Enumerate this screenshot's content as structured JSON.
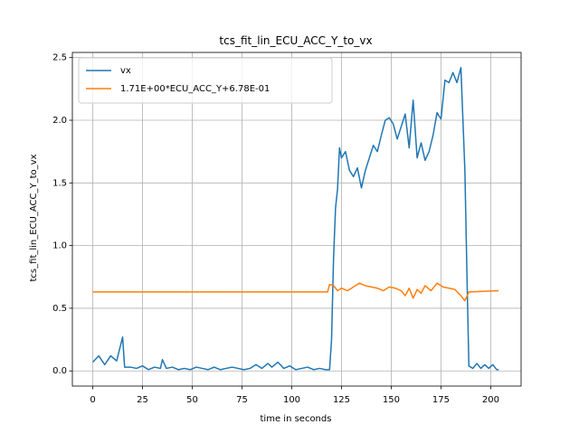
{
  "chart_data": {
    "type": "line",
    "title": "tcs_fit_lin_ECU_ACC_Y_to_vx",
    "xlabel": "time in seconds",
    "ylabel": "tcs_fit_lin_ECU_ACC_Y_to_vx",
    "xlim": [
      -10.25,
      215.25
    ],
    "ylim": [
      -0.121,
      2.541
    ],
    "xticks": [
      0,
      25,
      50,
      75,
      100,
      125,
      150,
      175,
      200
    ],
    "yticks": [
      {
        "value": 0,
        "label": "0.0"
      },
      {
        "value": 0.5,
        "label": "0.5"
      },
      {
        "value": 1,
        "label": "1.0"
      },
      {
        "value": 1.5,
        "label": "1.5"
      },
      {
        "value": 2,
        "label": "2.0"
      },
      {
        "value": 2.5,
        "label": "2.5"
      }
    ],
    "grid": true,
    "legend": "upper left",
    "series": [
      {
        "name": "vx",
        "color": "#1f77b4",
        "x": [
          0,
          3,
          6,
          9,
          12,
          15,
          16,
          19,
          22,
          25,
          28,
          31,
          34,
          35,
          37,
          40,
          43,
          46,
          49,
          52,
          55,
          58,
          61,
          64,
          67,
          70,
          73,
          76,
          79,
          82,
          85,
          88,
          90,
          93,
          96,
          99,
          102,
          105,
          108,
          111,
          114,
          117,
          119,
          120,
          121,
          122,
          123,
          124,
          125,
          127,
          129,
          131,
          133,
          135,
          137,
          139,
          141,
          143,
          145,
          147,
          149,
          151,
          153,
          155,
          157,
          159,
          161,
          163,
          165,
          167,
          169,
          171,
          173,
          175,
          177,
          179,
          181,
          183,
          185,
          187,
          188,
          189,
          191,
          193,
          195,
          197,
          199,
          201,
          203,
          204
        ],
        "values": [
          0.07,
          0.12,
          0.05,
          0.12,
          0.08,
          0.27,
          0.03,
          0.03,
          0.02,
          0.04,
          0.01,
          0.03,
          0.02,
          0.09,
          0.02,
          0.03,
          0.01,
          0.02,
          0.01,
          0.03,
          0.02,
          0.01,
          0.03,
          0.01,
          0.02,
          0.03,
          0.02,
          0.01,
          0.02,
          0.05,
          0.02,
          0.06,
          0.03,
          0.07,
          0.02,
          0.04,
          0.01,
          0.02,
          0.03,
          0.01,
          0.02,
          0.01,
          0.01,
          0.25,
          0.9,
          1.3,
          1.45,
          1.78,
          1.7,
          1.75,
          1.6,
          1.55,
          1.62,
          1.46,
          1.6,
          1.7,
          1.8,
          1.75,
          1.88,
          2.0,
          2.02,
          1.97,
          1.85,
          1.95,
          2.05,
          1.78,
          2.16,
          1.7,
          1.82,
          1.68,
          1.75,
          1.88,
          2.06,
          2.01,
          2.32,
          2.3,
          2.38,
          2.3,
          2.42,
          1.6,
          0.8,
          0.04,
          0.02,
          0.06,
          0.02,
          0.05,
          0.02,
          0.05,
          0.01,
          0.01
        ]
      },
      {
        "name": "1.71E+00*ECU_ACC_Y+6.78E-01",
        "color": "#ff7f0e",
        "x": [
          0,
          30,
          60,
          90,
          118,
          119,
          121,
          123,
          125,
          128,
          131,
          134,
          137,
          140,
          143,
          146,
          149,
          152,
          155,
          157,
          159,
          161,
          163,
          165,
          167,
          170,
          173,
          176,
          179,
          182,
          185,
          187,
          189,
          204
        ],
        "values": [
          0.63,
          0.63,
          0.63,
          0.63,
          0.63,
          0.69,
          0.68,
          0.64,
          0.66,
          0.64,
          0.67,
          0.7,
          0.68,
          0.67,
          0.66,
          0.64,
          0.67,
          0.66,
          0.64,
          0.6,
          0.66,
          0.58,
          0.65,
          0.62,
          0.68,
          0.64,
          0.7,
          0.67,
          0.66,
          0.65,
          0.6,
          0.56,
          0.63,
          0.64
        ]
      }
    ]
  }
}
